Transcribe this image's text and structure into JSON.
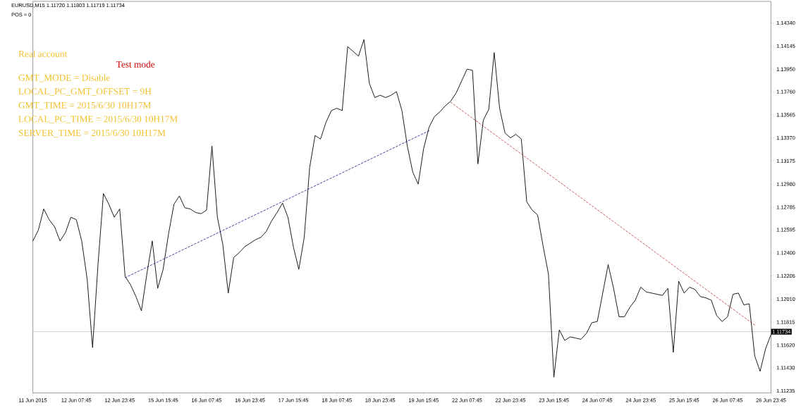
{
  "chart_data": {
    "type": "line",
    "annotations": [
      "EURUSD,M15  1.11720 1.11803 1.11719 1.11734",
      "POS = 0",
      "Real account",
      "Test mode",
      "GMT_MODE  = Disable",
      "LOCAL_PC_GMT_OFFSET = 9H",
      "GMT_TIME         = 2015/6/30 10H17M",
      "LOCAL_PC_TIME = 2015/6/30 10H17M",
      "SERVER_TIME     = 2015/6/30 10H17M"
    ],
    "categories": [
      "11 Jun 2015",
      null,
      null,
      null,
      null,
      null,
      null,
      null,
      "12 Jun 07:45",
      null,
      null,
      null,
      null,
      null,
      null,
      null,
      "12 Jun 23:45",
      null,
      null,
      null,
      null,
      null,
      null,
      null,
      "15 Jun 15:45",
      null,
      null,
      null,
      null,
      null,
      null,
      null,
      "16 Jun 07:45",
      null,
      null,
      null,
      null,
      null,
      null,
      null,
      "16 Jun 23:45",
      null,
      null,
      null,
      null,
      null,
      null,
      null,
      "17 Jun 15:45",
      null,
      null,
      null,
      null,
      null,
      null,
      null,
      "18 Jun 07:45",
      null,
      null,
      null,
      null,
      null,
      null,
      null,
      "18 Jun 23:45",
      null,
      null,
      null,
      null,
      null,
      null,
      null,
      "19 Jun 15:45",
      null,
      null,
      null,
      null,
      null,
      null,
      null,
      "22 Jun 07:45",
      null,
      null,
      null,
      null,
      null,
      null,
      null,
      "22 Jun 23:45",
      null,
      null,
      null,
      null,
      null,
      null,
      null,
      "23 Jun 15:45",
      null,
      null,
      null,
      null,
      null,
      null,
      null,
      "24 Jun 07:45",
      null,
      null,
      null,
      null,
      null,
      null,
      null,
      "24 Jun 23:45",
      null,
      null,
      null,
      null,
      null,
      null,
      null,
      "25 Jun 15:45",
      null,
      null,
      null,
      null,
      null,
      null,
      null,
      "26 Jun 07:45",
      null,
      null,
      null,
      null,
      null,
      null,
      null,
      "26 Jun 23:45"
    ],
    "series": [
      {
        "color": "#000000",
        "line_style": "solid",
        "values": [
          1.125,
          1.1259,
          1.1277,
          1.1268,
          1.1262,
          1.125,
          1.1257,
          1.127,
          1.1268,
          1.125,
          1.1218,
          1.116,
          1.123,
          1.129,
          1.1281,
          1.127,
          1.1277,
          1.122,
          1.1213,
          1.1203,
          1.1191,
          1.1222,
          1.125,
          1.121,
          1.1226,
          1.1256,
          1.1281,
          1.1288,
          1.1278,
          1.1277,
          1.1274,
          1.1273,
          1.1276,
          1.133,
          1.127,
          1.1247,
          1.1206,
          1.1236,
          1.124,
          1.1245,
          1.1248,
          1.1251,
          1.1253,
          1.1258,
          1.1267,
          1.1274,
          1.1282,
          1.127,
          1.1245,
          1.1226,
          1.1253,
          1.1312,
          1.1339,
          1.1336,
          1.135,
          1.136,
          1.1362,
          1.136,
          1.1414,
          1.141,
          1.1406,
          1.142,
          1.1383,
          1.1371,
          1.1373,
          1.1371,
          1.1373,
          1.1376,
          1.136,
          1.133,
          1.1308,
          1.1298,
          1.1328,
          1.1346,
          1.1355,
          1.1359,
          1.1364,
          1.1368,
          1.1375,
          1.1385,
          1.1395,
          1.1394,
          1.1315,
          1.1352,
          1.1361,
          1.1409,
          1.1362,
          1.1341,
          1.1337,
          1.134,
          1.1336,
          1.1283,
          1.1276,
          1.1272,
          1.1246,
          1.1222,
          1.1135,
          1.1175,
          1.1166,
          1.1169,
          1.1168,
          1.1167,
          1.1172,
          1.1181,
          1.1182,
          1.1206,
          1.123,
          1.121,
          1.1186,
          1.1186,
          1.1194,
          1.12,
          1.1211,
          1.1207,
          1.1206,
          1.1205,
          1.1204,
          1.121,
          1.1156,
          1.1216,
          1.1206,
          1.1211,
          1.1209,
          1.1203,
          1.1202,
          1.12,
          1.1187,
          1.1182,
          1.1186,
          1.1205,
          1.1206,
          1.1196,
          1.1197,
          1.1153,
          1.114,
          1.1159,
          1.1171
        ]
      },
      {
        "color": "#000080",
        "line_style": "dashed",
        "values": [
          null,
          null,
          null,
          null,
          null,
          null,
          null,
          null,
          null,
          null,
          null,
          null,
          null,
          null,
          null,
          null,
          null,
          1.1219,
          null,
          null,
          null,
          null,
          null,
          null,
          null,
          null,
          null,
          null,
          null,
          null,
          null,
          null,
          null,
          null,
          null,
          null,
          null,
          null,
          null,
          null,
          null,
          null,
          null,
          null,
          null,
          null,
          null,
          null,
          null,
          null,
          null,
          null,
          null,
          null,
          null,
          null,
          null,
          null,
          null,
          null,
          null,
          null,
          null,
          null,
          null,
          null,
          null,
          null,
          null,
          null,
          null,
          null,
          null,
          1.1343,
          null,
          null,
          null,
          null,
          null,
          null,
          null,
          null,
          null,
          null,
          null,
          null,
          null,
          null,
          null,
          null,
          null,
          null,
          null,
          null,
          null,
          null,
          null,
          null,
          null,
          null,
          null,
          null,
          null,
          null,
          null,
          null,
          null,
          null,
          null,
          null,
          null,
          null,
          null,
          null,
          null,
          null,
          null,
          null,
          null,
          null,
          null,
          null,
          null,
          null,
          null,
          null,
          null,
          null,
          null,
          null,
          null,
          null,
          null,
          null,
          null,
          null,
          null
        ]
      },
      {
        "color": "#b22222",
        "line_style": "dashed",
        "values": [
          null,
          null,
          null,
          null,
          null,
          null,
          null,
          null,
          null,
          null,
          null,
          null,
          null,
          null,
          null,
          null,
          null,
          null,
          null,
          null,
          null,
          null,
          null,
          null,
          null,
          null,
          null,
          null,
          null,
          null,
          null,
          null,
          null,
          null,
          null,
          null,
          null,
          null,
          null,
          null,
          null,
          null,
          null,
          null,
          null,
          null,
          null,
          null,
          null,
          null,
          null,
          null,
          null,
          null,
          null,
          null,
          null,
          null,
          null,
          null,
          null,
          null,
          null,
          null,
          null,
          null,
          null,
          null,
          null,
          null,
          null,
          null,
          null,
          null,
          null,
          null,
          null,
          1.1367,
          null,
          null,
          null,
          null,
          null,
          null,
          null,
          null,
          null,
          null,
          null,
          null,
          null,
          null,
          null,
          null,
          null,
          null,
          null,
          null,
          null,
          null,
          null,
          null,
          null,
          null,
          null,
          null,
          null,
          null,
          null,
          null,
          null,
          null,
          null,
          null,
          null,
          null,
          null,
          null,
          null,
          null,
          null,
          null,
          null,
          null,
          null,
          null,
          null,
          null,
          null,
          null,
          null,
          null,
          null,
          1.1179,
          null,
          null,
          null
        ]
      }
    ],
    "ref_lines": [
      {
        "axis": "y",
        "value": 1.11734,
        "label": "1.11734",
        "color": "#c0c0c0"
      }
    ],
    "ylim": [
      1.11217,
      1.14522
    ],
    "yticks": [
      {
        "value": 1.11235,
        "label": "1.11235"
      },
      {
        "value": 1.1143,
        "label": "1.11430"
      },
      {
        "value": 1.1162,
        "label": "1.11620"
      },
      {
        "value": 1.11815,
        "label": "1.11815"
      },
      {
        "value": 1.1201,
        "label": "1.12010"
      },
      {
        "value": 1.12205,
        "label": "1.12205"
      },
      {
        "value": 1.124,
        "label": "1.12400"
      },
      {
        "value": 1.12595,
        "label": "1.12595"
      },
      {
        "value": 1.12785,
        "label": "1.12785"
      },
      {
        "value": 1.1298,
        "label": "1.12980"
      },
      {
        "value": 1.13175,
        "label": "1.13175"
      },
      {
        "value": 1.1337,
        "label": "1.13370"
      },
      {
        "value": 1.13565,
        "label": "1.13565"
      },
      {
        "value": 1.1376,
        "label": "1.13760"
      },
      {
        "value": 1.1395,
        "label": "1.13950"
      },
      {
        "value": 1.14145,
        "label": "1.14145"
      },
      {
        "value": 1.1434,
        "label": "1.14340"
      }
    ]
  }
}
